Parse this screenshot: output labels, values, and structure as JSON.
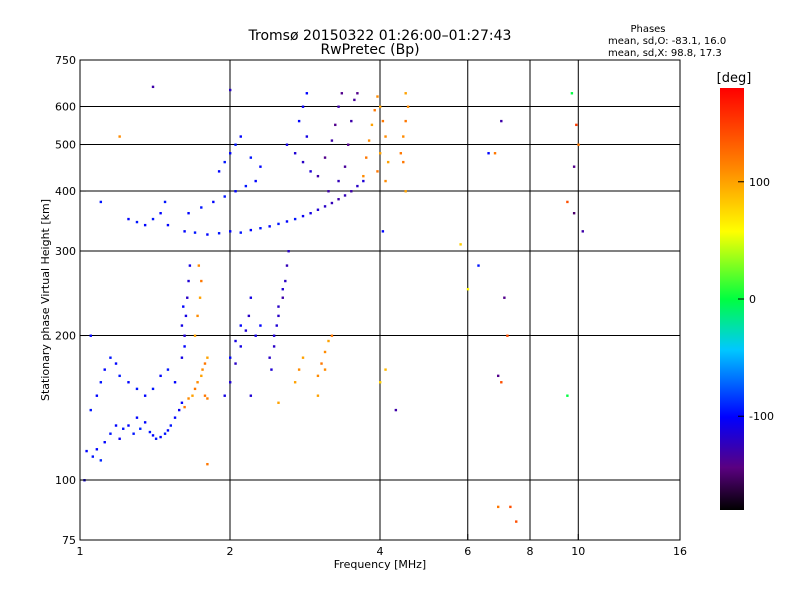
{
  "header": {
    "title": "Tromsø 20150322 01:26:00–01:27:43",
    "subtitle": "RwPretec (Bp)",
    "phases_title": "Phases",
    "phases_line1": "mean, sd,O: -83.1, 16.0",
    "phases_line2": "mean, sd,X:  98.8, 17.3"
  },
  "colorbar": {
    "unit_label": "[deg]",
    "ticks": [
      {
        "label": "100",
        "value": 100
      },
      {
        "label": "0",
        "value": 0
      },
      {
        "label": "-100",
        "value": -100
      }
    ],
    "range": [
      -180,
      180
    ]
  },
  "chart_data": {
    "type": "scatter",
    "title": "Tromsø 20150322 01:26:00–01:27:43",
    "subtitle": "RwPretec (Bp)",
    "xlabel": "Frequency [MHz]",
    "ylabel": "Stationary phase Virtual Height [km]",
    "x_scale": "log",
    "y_scale": "log",
    "xlim": [
      1,
      16
    ],
    "ylim": [
      75,
      750
    ],
    "x_ticks": [
      {
        "label": "1",
        "value": 1
      },
      {
        "label": "2",
        "value": 2
      },
      {
        "label": "4",
        "value": 4
      },
      {
        "label": "6",
        "value": 6
      },
      {
        "label": "8",
        "value": 8
      },
      {
        "label": "10",
        "value": 10
      },
      {
        "label": "16",
        "value": 16
      }
    ],
    "x_grid": [
      2,
      4,
      6,
      8,
      10
    ],
    "y_ticks": [
      {
        "label": "75",
        "value": 75
      },
      {
        "label": "100",
        "value": 100
      },
      {
        "label": "200",
        "value": 200
      },
      {
        "label": "300",
        "value": 300
      },
      {
        "label": "400",
        "value": 400
      },
      {
        "label": "500",
        "value": 500
      },
      {
        "label": "600",
        "value": 600
      },
      {
        "label": "750",
        "value": 750
      }
    ],
    "y_grid": [
      100,
      200,
      300,
      400,
      500,
      600
    ],
    "color_value": "phase [deg]",
    "points": [
      [
        1.03,
        115,
        -100
      ],
      [
        1.06,
        112,
        -95
      ],
      [
        1.08,
        116,
        -100
      ],
      [
        1.1,
        110,
        -90
      ],
      [
        1.12,
        120,
        -100
      ],
      [
        1.15,
        125,
        -95
      ],
      [
        1.18,
        130,
        -100
      ],
      [
        1.2,
        122,
        -105
      ],
      [
        1.22,
        128,
        -95
      ],
      [
        1.25,
        130,
        -100
      ],
      [
        1.28,
        125,
        -95
      ],
      [
        1.3,
        135,
        -100
      ],
      [
        1.32,
        128,
        -90
      ],
      [
        1.35,
        132,
        -100
      ],
      [
        1.38,
        126,
        -95
      ],
      [
        1.4,
        124,
        -100
      ],
      [
        1.42,
        122,
        -95
      ],
      [
        1.45,
        123,
        -100
      ],
      [
        1.48,
        125,
        -95
      ],
      [
        1.5,
        127,
        -100
      ],
      [
        1.52,
        130,
        -95
      ],
      [
        1.55,
        135,
        -100
      ],
      [
        1.58,
        140,
        -105
      ],
      [
        1.6,
        145,
        -100
      ],
      [
        1.62,
        142,
        120
      ],
      [
        1.65,
        148,
        110
      ],
      [
        1.68,
        150,
        100
      ],
      [
        1.7,
        155,
        120
      ],
      [
        1.72,
        160,
        110
      ],
      [
        1.75,
        165,
        100
      ],
      [
        1.78,
        150,
        120
      ],
      [
        1.8,
        148,
        115
      ],
      [
        1.05,
        140,
        -95
      ],
      [
        1.08,
        150,
        -100
      ],
      [
        1.1,
        160,
        -95
      ],
      [
        1.12,
        170,
        -100
      ],
      [
        1.15,
        180,
        -95
      ],
      [
        1.18,
        175,
        -100
      ],
      [
        1.2,
        165,
        -95
      ],
      [
        1.25,
        160,
        -100
      ],
      [
        1.3,
        155,
        -95
      ],
      [
        1.35,
        150,
        -100
      ],
      [
        1.4,
        155,
        -95
      ],
      [
        1.45,
        165,
        -100
      ],
      [
        1.5,
        170,
        -95
      ],
      [
        1.55,
        160,
        -100
      ],
      [
        1.6,
        180,
        -110
      ],
      [
        1.62,
        200,
        -115
      ],
      [
        1.63,
        220,
        -110
      ],
      [
        1.64,
        240,
        -120
      ],
      [
        1.65,
        260,
        -115
      ],
      [
        1.66,
        280,
        -110
      ],
      [
        1.62,
        190,
        -100
      ],
      [
        1.6,
        210,
        -110
      ],
      [
        1.61,
        230,
        -100
      ],
      [
        1.7,
        200,
        100
      ],
      [
        1.72,
        220,
        110
      ],
      [
        1.74,
        240,
        100
      ],
      [
        1.75,
        260,
        120
      ],
      [
        1.73,
        280,
        110
      ],
      [
        1.76,
        170,
        110
      ],
      [
        1.78,
        175,
        120
      ],
      [
        1.8,
        180,
        100
      ],
      [
        1.95,
        150,
        -110
      ],
      [
        2.0,
        160,
        -115
      ],
      [
        2.05,
        175,
        -120
      ],
      [
        2.1,
        190,
        -110
      ],
      [
        2.15,
        205,
        -115
      ],
      [
        2.18,
        220,
        -120
      ],
      [
        2.2,
        240,
        -110
      ],
      [
        2.1,
        210,
        -100
      ],
      [
        2.05,
        195,
        -110
      ],
      [
        2.0,
        180,
        -100
      ],
      [
        2.25,
        200,
        -110
      ],
      [
        2.3,
        210,
        -100
      ],
      [
        2.4,
        180,
        -120
      ],
      [
        2.45,
        200,
        -115
      ],
      [
        2.5,
        220,
        -120
      ],
      [
        2.55,
        240,
        -130
      ],
      [
        2.58,
        260,
        -120
      ],
      [
        2.6,
        280,
        -125
      ],
      [
        2.62,
        300,
        -120
      ],
      [
        2.55,
        250,
        -115
      ],
      [
        2.5,
        230,
        -120
      ],
      [
        2.48,
        210,
        -115
      ],
      [
        2.45,
        190,
        -120
      ],
      [
        2.42,
        170,
        -115
      ],
      [
        2.7,
        160,
        100
      ],
      [
        2.75,
        170,
        110
      ],
      [
        2.8,
        180,
        100
      ],
      [
        3.0,
        165,
        110
      ],
      [
        3.05,
        175,
        120
      ],
      [
        3.1,
        185,
        110
      ],
      [
        3.15,
        195,
        100
      ],
      [
        3.2,
        200,
        120
      ],
      [
        3.1,
        170,
        110
      ],
      [
        3.0,
        150,
        100
      ],
      [
        1.25,
        350,
        -100
      ],
      [
        1.3,
        345,
        -95
      ],
      [
        1.35,
        340,
        -100
      ],
      [
        1.4,
        350,
        -95
      ],
      [
        1.45,
        360,
        -100
      ],
      [
        1.48,
        380,
        -95
      ],
      [
        1.62,
        330,
        -100
      ],
      [
        1.7,
        328,
        -95
      ],
      [
        1.8,
        325,
        -100
      ],
      [
        1.9,
        327,
        -95
      ],
      [
        2.0,
        330,
        -100
      ],
      [
        2.1,
        328,
        -95
      ],
      [
        2.2,
        332,
        -100
      ],
      [
        2.3,
        335,
        -95
      ],
      [
        2.4,
        338,
        -100
      ],
      [
        2.5,
        342,
        -95
      ],
      [
        2.6,
        346,
        -100
      ],
      [
        2.7,
        350,
        -95
      ],
      [
        2.8,
        355,
        -105
      ],
      [
        2.9,
        360,
        -110
      ],
      [
        3.0,
        366,
        -115
      ],
      [
        3.1,
        372,
        -120
      ],
      [
        3.2,
        378,
        -125
      ],
      [
        3.3,
        385,
        -130
      ],
      [
        3.4,
        392,
        -125
      ],
      [
        3.5,
        400,
        -130
      ],
      [
        3.6,
        410,
        -120
      ],
      [
        3.7,
        420,
        -115
      ],
      [
        1.65,
        360,
        -100
      ],
      [
        1.75,
        370,
        -95
      ],
      [
        1.85,
        380,
        -100
      ],
      [
        1.95,
        390,
        -95
      ],
      [
        2.05,
        400,
        -100
      ],
      [
        2.15,
        410,
        -95
      ],
      [
        2.25,
        420,
        -100
      ],
      [
        1.9,
        440,
        -100
      ],
      [
        1.95,
        460,
        -95
      ],
      [
        2.0,
        480,
        -100
      ],
      [
        2.05,
        500,
        -95
      ],
      [
        2.1,
        520,
        -100
      ],
      [
        2.2,
        470,
        -95
      ],
      [
        2.3,
        450,
        -100
      ],
      [
        2.6,
        500,
        -110
      ],
      [
        2.7,
        480,
        -115
      ],
      [
        2.8,
        460,
        -120
      ],
      [
        2.9,
        440,
        -115
      ],
      [
        2.85,
        520,
        -110
      ],
      [
        2.75,
        560,
        -100
      ],
      [
        2.8,
        600,
        -105
      ],
      [
        2.85,
        640,
        -100
      ],
      [
        3.0,
        430,
        -130
      ],
      [
        3.1,
        470,
        -140
      ],
      [
        3.2,
        510,
        -130
      ],
      [
        3.25,
        550,
        -140
      ],
      [
        3.3,
        600,
        -130
      ],
      [
        3.35,
        640,
        -140
      ],
      [
        3.4,
        450,
        -135
      ],
      [
        3.45,
        500,
        -140
      ],
      [
        3.5,
        560,
        -130
      ],
      [
        3.55,
        620,
        -135
      ],
      [
        3.6,
        640,
        -140
      ],
      [
        3.15,
        400,
        -130
      ],
      [
        3.3,
        420,
        -125
      ],
      [
        3.7,
        430,
        110
      ],
      [
        3.75,
        470,
        120
      ],
      [
        3.8,
        510,
        110
      ],
      [
        3.85,
        550,
        100
      ],
      [
        3.9,
        590,
        120
      ],
      [
        3.95,
        630,
        110
      ],
      [
        4.0,
        600,
        100
      ],
      [
        4.05,
        560,
        120
      ],
      [
        4.1,
        520,
        110
      ],
      [
        4.0,
        480,
        100
      ],
      [
        3.95,
        440,
        120
      ],
      [
        4.1,
        420,
        110
      ],
      [
        4.15,
        460,
        100
      ],
      [
        4.4,
        480,
        120
      ],
      [
        4.45,
        520,
        110
      ],
      [
        4.5,
        560,
        120
      ],
      [
        4.55,
        600,
        110
      ],
      [
        4.5,
        640,
        100
      ],
      [
        4.45,
        460,
        120
      ],
      [
        1.02,
        100,
        -110
      ],
      [
        1.05,
        200,
        -100
      ],
      [
        1.1,
        380,
        -95
      ],
      [
        1.2,
        520,
        110
      ],
      [
        1.4,
        660,
        -130
      ],
      [
        1.5,
        340,
        -100
      ],
      [
        2.0,
        650,
        -120
      ],
      [
        4.0,
        160,
        80
      ],
      [
        4.1,
        170,
        90
      ],
      [
        4.3,
        140,
        -130
      ],
      [
        4.05,
        330,
        -100
      ],
      [
        4.5,
        400,
        100
      ],
      [
        5.8,
        310,
        80
      ],
      [
        6.0,
        250,
        60
      ],
      [
        6.3,
        280,
        -95
      ],
      [
        6.6,
        480,
        -100
      ],
      [
        6.8,
        480,
        120
      ],
      [
        7.0,
        560,
        -130
      ],
      [
        7.1,
        240,
        -140
      ],
      [
        7.2,
        200,
        140
      ],
      [
        6.9,
        165,
        -140
      ],
      [
        7.0,
        160,
        140
      ],
      [
        6.9,
        88,
        120
      ],
      [
        7.3,
        88,
        140
      ],
      [
        7.5,
        82,
        140
      ],
      [
        9.5,
        380,
        140
      ],
      [
        9.8,
        360,
        -150
      ],
      [
        9.9,
        550,
        150
      ],
      [
        10.0,
        500,
        120
      ],
      [
        10.2,
        330,
        -130
      ],
      [
        9.7,
        640,
        0
      ],
      [
        9.8,
        450,
        -140
      ],
      [
        9.5,
        150,
        0
      ],
      [
        1.8,
        108,
        120
      ],
      [
        2.2,
        150,
        -115
      ],
      [
        2.5,
        145,
        100
      ]
    ]
  }
}
